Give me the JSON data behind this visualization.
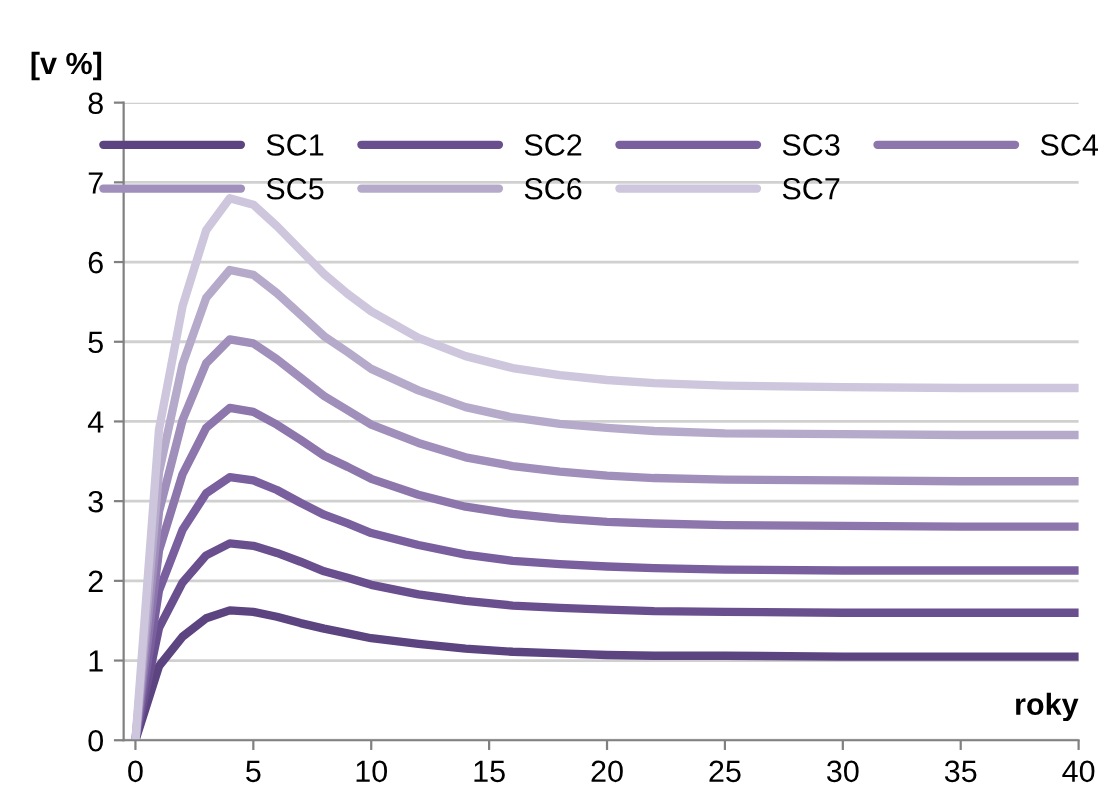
{
  "chart_data": {
    "type": "line",
    "ylabel": "[v %]",
    "xlabel": "roky",
    "x": [
      0,
      1,
      2,
      3,
      4,
      5,
      6,
      7,
      8,
      9,
      10,
      12,
      14,
      16,
      18,
      20,
      22,
      25,
      30,
      35,
      40
    ],
    "series": [
      {
        "name": "SC1",
        "color": "#5b4480",
        "values": [
          0,
          0.93,
          1.3,
          1.53,
          1.63,
          1.61,
          1.55,
          1.47,
          1.4,
          1.34,
          1.28,
          1.21,
          1.15,
          1.11,
          1.09,
          1.07,
          1.06,
          1.06,
          1.05,
          1.05,
          1.05
        ]
      },
      {
        "name": "SC2",
        "color": "#6a4f8f",
        "values": [
          0,
          1.41,
          1.98,
          2.32,
          2.47,
          2.44,
          2.35,
          2.24,
          2.12,
          2.04,
          1.95,
          1.83,
          1.75,
          1.69,
          1.66,
          1.64,
          1.62,
          1.61,
          1.6,
          1.6,
          1.6
        ]
      },
      {
        "name": "SC3",
        "color": "#7a5f9f",
        "values": [
          0,
          1.88,
          2.64,
          3.1,
          3.3,
          3.26,
          3.14,
          2.98,
          2.83,
          2.72,
          2.6,
          2.45,
          2.33,
          2.25,
          2.21,
          2.18,
          2.16,
          2.14,
          2.13,
          2.13,
          2.13
        ]
      },
      {
        "name": "SC4",
        "color": "#8d76ac",
        "values": [
          0,
          2.38,
          3.34,
          3.92,
          4.17,
          4.12,
          3.96,
          3.77,
          3.57,
          3.43,
          3.28,
          3.08,
          2.93,
          2.84,
          2.78,
          2.74,
          2.72,
          2.7,
          2.69,
          2.68,
          2.68
        ]
      },
      {
        "name": "SC5",
        "color": "#a08fba",
        "values": [
          0,
          2.87,
          4.02,
          4.73,
          5.03,
          4.98,
          4.78,
          4.55,
          4.32,
          4.14,
          3.96,
          3.73,
          3.55,
          3.44,
          3.37,
          3.32,
          3.29,
          3.27,
          3.26,
          3.25,
          3.25
        ]
      },
      {
        "name": "SC6",
        "color": "#b6aacb",
        "values": [
          0,
          3.36,
          4.72,
          5.55,
          5.9,
          5.84,
          5.61,
          5.34,
          5.07,
          4.87,
          4.66,
          4.39,
          4.18,
          4.05,
          3.97,
          3.92,
          3.88,
          3.85,
          3.84,
          3.83,
          3.83
        ]
      },
      {
        "name": "SC7",
        "color": "#cdc6dc",
        "values": [
          0,
          3.9,
          5.45,
          6.4,
          6.8,
          6.72,
          6.45,
          6.15,
          5.85,
          5.6,
          5.38,
          5.05,
          4.82,
          4.67,
          4.58,
          4.52,
          4.48,
          4.45,
          4.43,
          4.42,
          4.42
        ]
      }
    ],
    "xlim": [
      -0.5,
      40
    ],
    "xticks": [
      0,
      5,
      10,
      15,
      20,
      25,
      30,
      35,
      40
    ],
    "ylim": [
      0,
      8
    ],
    "yticks": [
      0,
      1,
      2,
      3,
      4,
      5,
      6,
      7,
      8
    ],
    "grid": "y",
    "legend": "top",
    "marker": "none",
    "line_style": "solid"
  }
}
